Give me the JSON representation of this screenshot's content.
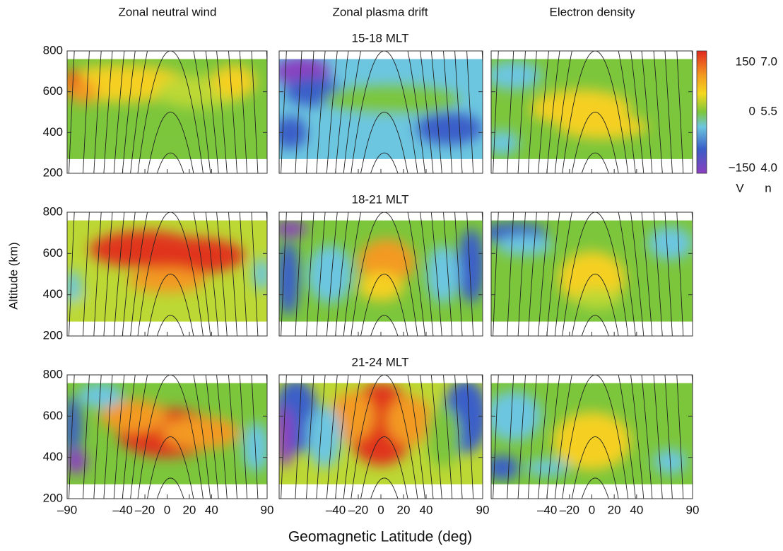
{
  "chart_data": {
    "type": "heatmap-grid",
    "columns": [
      "Zonal neutral wind",
      "Zonal plasma drift",
      "Electron density"
    ],
    "rows": [
      "15-18 MLT",
      "18-21 MLT",
      "21-24 MLT"
    ],
    "xlabel": "Geomagnetic Latitude (deg)",
    "ylabel": "Altitude (km)",
    "xlim": [
      -90,
      90
    ],
    "ylim": [
      200,
      800
    ],
    "xticks": [
      {
        "value": -90,
        "label": "–90"
      },
      {
        "value": -40,
        "label": "–40"
      },
      {
        "value": -20,
        "label": "–20"
      },
      0,
      20,
      40,
      90
    ],
    "yticks": [
      200,
      400,
      600,
      800
    ],
    "colorbar": {
      "wind_ticks": [
        150,
        0,
        {
          "value": -150,
          "label": "−150"
        }
      ],
      "density_ticks": [
        {
          "value": 7,
          "label": "7.0"
        },
        5.5,
        {
          "value": 4,
          "label": "4.0"
        }
      ],
      "wind_unit": "V",
      "density_unit": "n"
    }
  }
}
